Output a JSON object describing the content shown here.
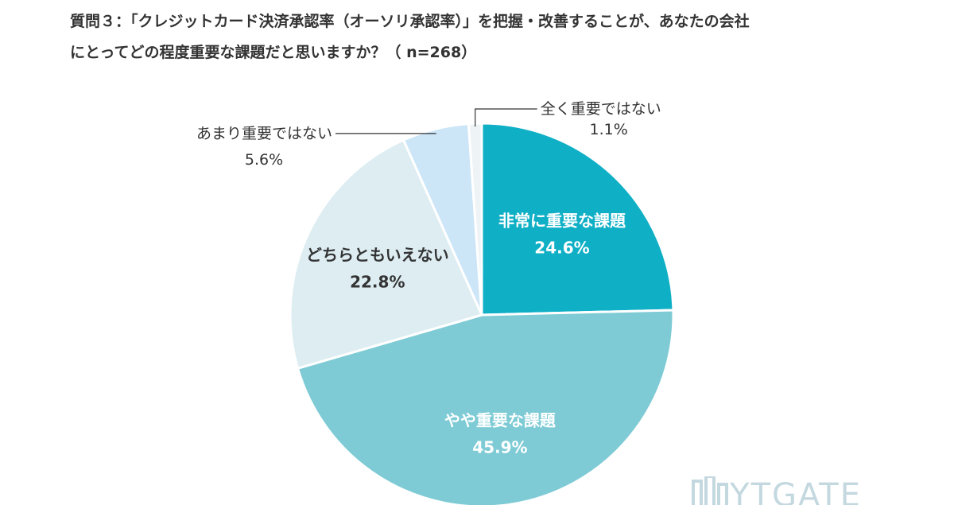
{
  "title": {
    "line1": "質問３：「クレジットカード決済承認率（オーソリ承認率）」を把握・改善することが、あなたの会社",
    "line2": "にとってどの程度重要な課題だと思いますか？（ n=268）"
  },
  "chart_data": {
    "type": "pie",
    "start_angle_deg": 0,
    "direction": "clockwise",
    "slices": [
      {
        "label": "非常に重要な課題",
        "value": 24.6,
        "value_label": "24.6%",
        "color": "#0fafc6",
        "text_color": "#ffffff",
        "label_style": "inside"
      },
      {
        "label": "やや重要な課題",
        "value": 45.9,
        "value_label": "45.9%",
        "color": "#7ecbd5",
        "text_color": "#ffffff",
        "label_style": "inside"
      },
      {
        "label": "どちらともいえない",
        "value": 22.8,
        "value_label": "22.8%",
        "color": "#ddedf2",
        "text_color": "#333333",
        "label_style": "inside"
      },
      {
        "label": "あまり重要ではない",
        "value": 5.6,
        "value_label": "5.6%",
        "color": "#cce6f8",
        "text_color": "#333333",
        "label_style": "leader-left"
      },
      {
        "label": "全く重要ではない",
        "value": 1.1,
        "value_label": "1.1%",
        "color": "#eef3f5",
        "text_color": "#333333",
        "label_style": "leader-right"
      }
    ]
  },
  "logo": {
    "text": "YTGATE"
  }
}
